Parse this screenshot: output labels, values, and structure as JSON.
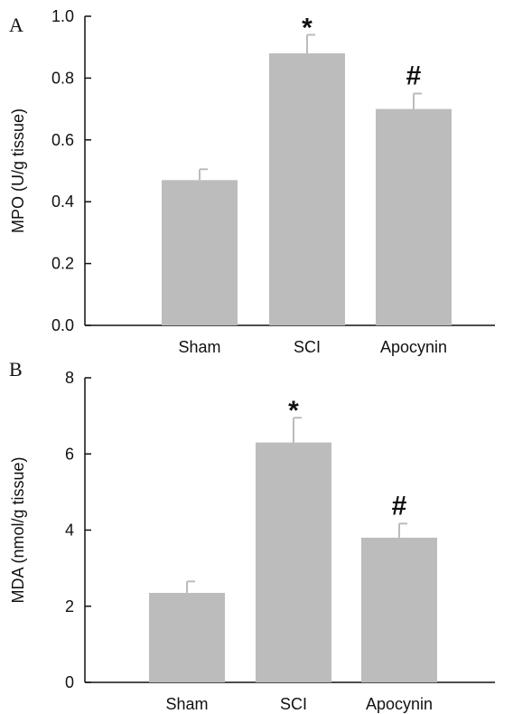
{
  "chart_data": [
    {
      "type": "bar",
      "panel_label": "A",
      "categories": [
        "Sham",
        "SCI",
        "Apocynin"
      ],
      "values": [
        0.47,
        0.88,
        0.7
      ],
      "errors": [
        0.035,
        0.06,
        0.05
      ],
      "annotations": [
        "",
        "*",
        "#"
      ],
      "title": "",
      "xlabel": "",
      "ylabel": "MPO (U/g tissue)",
      "ylim": [
        0,
        1.0
      ],
      "yticks": [
        0.0,
        0.2,
        0.4,
        0.6,
        0.8,
        1.0
      ],
      "ytick_labels": [
        "0.0",
        "0.2",
        "0.4",
        "0.6",
        "0.8",
        "1.0"
      ],
      "grid": false,
      "bar_color": "#bcbcbc"
    },
    {
      "type": "bar",
      "panel_label": "B",
      "categories": [
        "Sham",
        "SCI",
        "Apocynin"
      ],
      "values": [
        2.35,
        6.3,
        3.8
      ],
      "errors": [
        0.3,
        0.65,
        0.37
      ],
      "annotations": [
        "",
        "*",
        "#"
      ],
      "title": "",
      "xlabel": "",
      "ylabel": "MDA (nmol/g tissue)",
      "ylim": [
        0,
        8
      ],
      "yticks": [
        0,
        2,
        4,
        6,
        8
      ],
      "ytick_labels": [
        "0",
        "2",
        "4",
        "6",
        "8"
      ],
      "grid": false,
      "bar_color": "#bcbcbc"
    }
  ]
}
